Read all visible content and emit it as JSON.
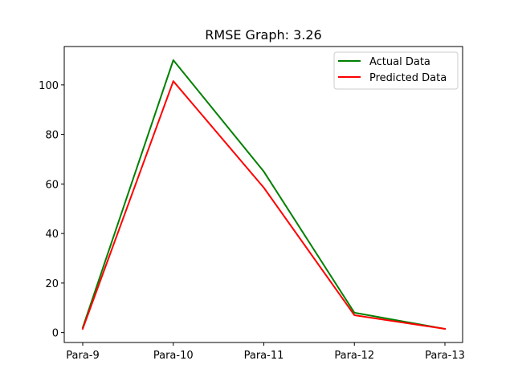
{
  "chart_data": {
    "type": "line",
    "title": "RMSE Graph: 3.26",
    "xlabel": "",
    "ylabel": "",
    "categories": [
      "Para-9",
      "Para-10",
      "Para-11",
      "Para-12",
      "Para-13"
    ],
    "series": [
      {
        "name": "Actual Data",
        "color": "#008000",
        "values": [
          2,
          110,
          65,
          8,
          1.5
        ]
      },
      {
        "name": "Predicted Data",
        "color": "#ff0000",
        "values": [
          1.5,
          101.5,
          58.5,
          7,
          1.5
        ]
      }
    ],
    "ylim": [
      -4,
      115.5
    ],
    "yticks": [
      0,
      20,
      40,
      60,
      80,
      100
    ],
    "grid": false,
    "legend_position": "upper right"
  }
}
